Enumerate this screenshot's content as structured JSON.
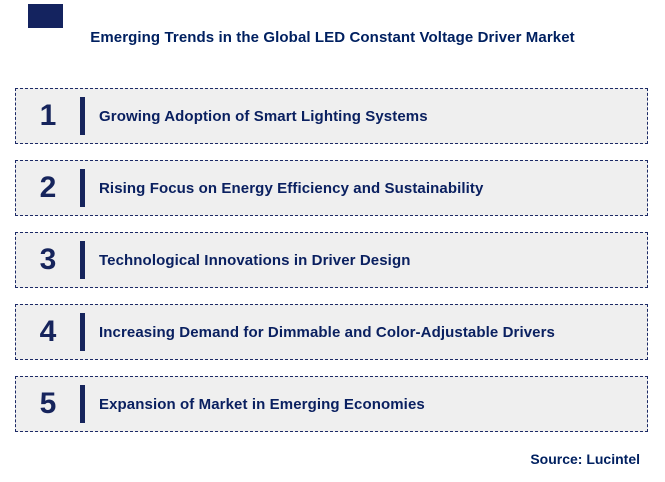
{
  "title": "Emerging Trends in the Global LED Constant Voltage Driver Market",
  "source": "Source: Lucintel",
  "trends": [
    {
      "number": "1",
      "label": "Growing Adoption of Smart Lighting Systems"
    },
    {
      "number": "2",
      "label": "Rising Focus on Energy Efficiency and Sustainability"
    },
    {
      "number": "3",
      "label": "Technological Innovations in Driver Design"
    },
    {
      "number": "4",
      "label": "Increasing Demand for Dimmable and Color-Adjustable Drivers"
    },
    {
      "number": "5",
      "label": "Expansion of Market in Emerging Economies"
    }
  ],
  "colors": {
    "navy_text": "#002060",
    "navy_accent": "#16245c",
    "row_background": "#efefef",
    "row_border": "#1c2a66",
    "page_background": "#ffffff"
  }
}
